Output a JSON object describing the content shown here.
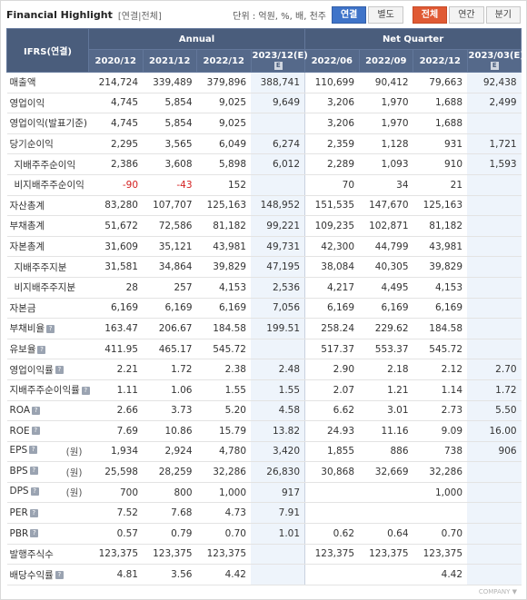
{
  "header": {
    "title": "Financial Highlight",
    "subtitle": "[연결|전체]",
    "unit": "단위 : 억원, %, 배, 천주",
    "toggle_consolidated": "연결",
    "toggle_separate": "별도",
    "toggle_all": "전체",
    "toggle_annual": "연간",
    "toggle_quarter": "분기"
  },
  "table": {
    "corner": "IFRS(연결)",
    "group_annual": "Annual",
    "group_quarter": "Net Quarter",
    "columns": [
      "2020/12",
      "2021/12",
      "2022/12",
      "2023/12(E)",
      "2022/06",
      "2022/09",
      "2022/12",
      "2023/03(E)"
    ],
    "est_mark": "E",
    "rows": [
      {
        "label": "매출액",
        "values": [
          "214,724",
          "339,489",
          "379,896",
          "388,741",
          "110,699",
          "90,412",
          "79,663",
          "92,438"
        ]
      },
      {
        "label": "영업이익",
        "values": [
          "4,745",
          "5,854",
          "9,025",
          "9,649",
          "3,206",
          "1,970",
          "1,688",
          "2,499"
        ]
      },
      {
        "label": "영업이익(발표기준)",
        "values": [
          "4,745",
          "5,854",
          "9,025",
          "",
          "3,206",
          "1,970",
          "1,688",
          ""
        ]
      },
      {
        "label": "당기순이익",
        "values": [
          "2,295",
          "3,565",
          "6,049",
          "6,274",
          "2,359",
          "1,128",
          "931",
          "1,721"
        ]
      },
      {
        "label": "지배주주순이익",
        "values": [
          "2,386",
          "3,608",
          "5,898",
          "6,012",
          "2,289",
          "1,093",
          "910",
          "1,593"
        ]
      },
      {
        "label": "비지배주주순이익",
        "values": [
          "-90",
          "-43",
          "152",
          "",
          "70",
          "34",
          "21",
          ""
        ]
      },
      {
        "label": "자산총계",
        "values": [
          "83,280",
          "107,707",
          "125,163",
          "148,952",
          "151,535",
          "147,670",
          "125,163",
          ""
        ]
      },
      {
        "label": "부채총계",
        "values": [
          "51,672",
          "72,586",
          "81,182",
          "99,221",
          "109,235",
          "102,871",
          "81,182",
          ""
        ]
      },
      {
        "label": "자본총계",
        "values": [
          "31,609",
          "35,121",
          "43,981",
          "49,731",
          "42,300",
          "44,799",
          "43,981",
          ""
        ]
      },
      {
        "label": "지배주주지분",
        "values": [
          "31,581",
          "34,864",
          "39,829",
          "47,195",
          "38,084",
          "40,305",
          "39,829",
          ""
        ]
      },
      {
        "label": "비지배주주지분",
        "values": [
          "28",
          "257",
          "4,153",
          "2,536",
          "4,217",
          "4,495",
          "4,153",
          ""
        ]
      },
      {
        "label": "자본금",
        "values": [
          "6,169",
          "6,169",
          "6,169",
          "7,056",
          "6,169",
          "6,169",
          "6,169",
          ""
        ]
      },
      {
        "label": "부채비율",
        "values": [
          "163.47",
          "206.67",
          "184.58",
          "199.51",
          "258.24",
          "229.62",
          "184.58",
          ""
        ]
      },
      {
        "label": "유보율",
        "values": [
          "411.95",
          "465.17",
          "545.72",
          "",
          "517.37",
          "553.37",
          "545.72",
          ""
        ]
      },
      {
        "label": "영업이익률",
        "values": [
          "2.21",
          "1.72",
          "2.38",
          "2.48",
          "2.90",
          "2.18",
          "2.12",
          "2.70"
        ]
      },
      {
        "label": "지배주주순이익률",
        "values": [
          "1.11",
          "1.06",
          "1.55",
          "1.55",
          "2.07",
          "1.21",
          "1.14",
          "1.72"
        ]
      },
      {
        "label": "ROA",
        "values": [
          "2.66",
          "3.73",
          "5.20",
          "4.58",
          "6.62",
          "3.01",
          "2.73",
          "5.50"
        ]
      },
      {
        "label": "ROE",
        "values": [
          "7.69",
          "10.86",
          "15.79",
          "13.82",
          "24.93",
          "11.16",
          "9.09",
          "16.00"
        ]
      },
      {
        "label": "EPS",
        "values": [
          "1,934",
          "2,924",
          "4,780",
          "3,420",
          "1,855",
          "886",
          "738",
          "906"
        ]
      },
      {
        "label": "BPS",
        "values": [
          "25,598",
          "28,259",
          "32,286",
          "26,830",
          "30,868",
          "32,669",
          "32,286",
          ""
        ]
      },
      {
        "label": "DPS",
        "values": [
          "700",
          "800",
          "1,000",
          "917",
          "",
          "",
          "1,000",
          ""
        ]
      },
      {
        "label": "PER",
        "values": [
          "7.52",
          "7.68",
          "4.73",
          "7.91",
          "",
          "",
          "",
          ""
        ]
      },
      {
        "label": "PBR",
        "values": [
          "0.57",
          "0.79",
          "0.70",
          "1.01",
          "0.62",
          "0.64",
          "0.70",
          ""
        ]
      },
      {
        "label": "발행주식수",
        "values": [
          "123,375",
          "123,375",
          "123,375",
          "",
          "123,375",
          "123,375",
          "123,375",
          ""
        ]
      },
      {
        "label": "배당수익률",
        "values": [
          "4.81",
          "3.56",
          "4.42",
          "",
          "",
          "",
          "4.42",
          ""
        ]
      }
    ],
    "won_unit": "(원)"
  },
  "footer": "COMPANY ▼"
}
